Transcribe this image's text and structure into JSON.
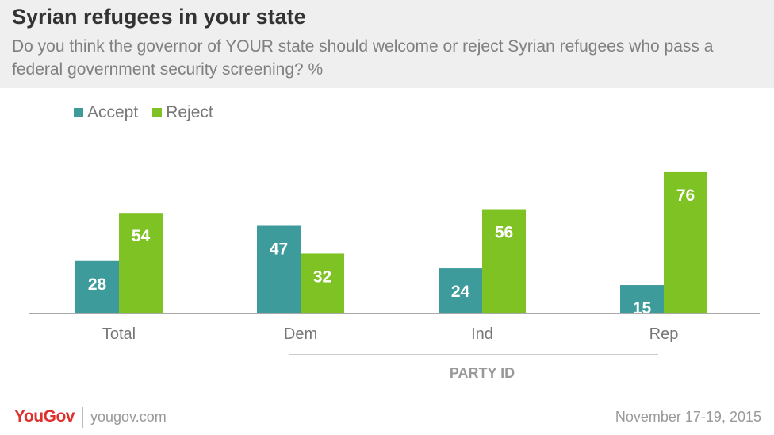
{
  "header": {
    "title": "Syrian refugees in your state",
    "subtitle": "Do you think the governor of YOUR state should welcome or reject Syrian refugees who pass a federal government security screening? %"
  },
  "legend": {
    "items": [
      {
        "label": "Accept",
        "color": "#3d9b9c"
      },
      {
        "label": "Reject",
        "color": "#7ec224"
      }
    ]
  },
  "chart_data": {
    "type": "bar",
    "categories": [
      "Total",
      "Dem",
      "Ind",
      "Rep"
    ],
    "series": [
      {
        "name": "Accept",
        "values": [
          28,
          47,
          24,
          15
        ],
        "color": "#3d9b9c"
      },
      {
        "name": "Reject",
        "values": [
          54,
          32,
          56,
          76
        ],
        "color": "#7ec224"
      }
    ],
    "group_label": "PARTY ID",
    "ylim": [
      0,
      80
    ],
    "grid": false,
    "legend_position": "top-left"
  },
  "footer": {
    "logo": "YouGov",
    "site": "yougov.com",
    "date": "November 17-19, 2015"
  }
}
